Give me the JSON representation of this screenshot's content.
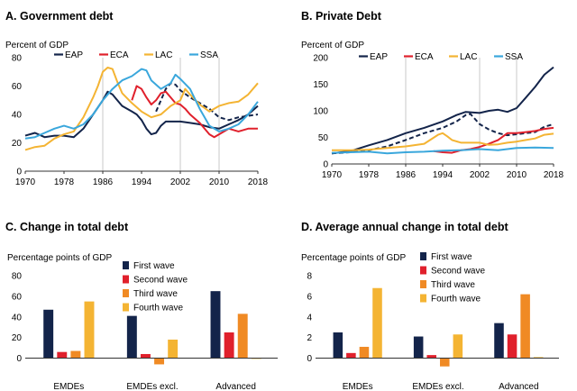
{
  "colors": {
    "navy": "#13244a",
    "red": "#e0202c",
    "orange": "#f08a24",
    "yellow": "#f4b433",
    "blue": "#3aa7dc",
    "gray": "#c8c8c8"
  },
  "chart_data": [
    {
      "id": "A",
      "type": "line",
      "title": "A. Government debt",
      "ylabel": "Percent of GDP",
      "ylim": [
        0,
        80
      ],
      "yticks": [
        0,
        20,
        40,
        60,
        80
      ],
      "xlim": [
        1970,
        2018
      ],
      "xticks": [
        1970,
        1978,
        1986,
        1994,
        2002,
        2010,
        2018
      ],
      "vlines": [
        1986,
        2002,
        2010
      ],
      "legend": [
        "EAP",
        "ECA",
        "LAC",
        "SSA"
      ],
      "series": [
        {
          "name": "EAP",
          "color": "navy",
          "dash": false,
          "points": [
            [
              1970,
              25
            ],
            [
              1972,
              27
            ],
            [
              1974,
              24
            ],
            [
              1976,
              25
            ],
            [
              1978,
              25
            ],
            [
              1980,
              24
            ],
            [
              1982,
              30
            ],
            [
              1984,
              40
            ],
            [
              1986,
              50
            ],
            [
              1987,
              56
            ],
            [
              1988,
              54
            ],
            [
              1990,
              46
            ],
            [
              1992,
              42
            ],
            [
              1993,
              40
            ],
            [
              1994,
              36
            ],
            [
              1995,
              30
            ],
            [
              1996,
              26
            ],
            [
              1997,
              27
            ],
            [
              1998,
              32
            ],
            [
              1999,
              35
            ],
            [
              2000,
              35
            ],
            [
              2002,
              35
            ],
            [
              2004,
              34
            ],
            [
              2006,
              33
            ],
            [
              2008,
              31
            ],
            [
              2010,
              30
            ],
            [
              2012,
              33
            ],
            [
              2014,
              36
            ],
            [
              2016,
              40
            ],
            [
              2018,
              46
            ]
          ]
        },
        {
          "name": "EAP dashed",
          "color": "navy",
          "dash": true,
          "points": [
            [
              1997,
              42
            ],
            [
              1998,
              50
            ],
            [
              1999,
              58
            ],
            [
              2000,
              62
            ],
            [
              2001,
              61
            ],
            [
              2002,
              57
            ],
            [
              2004,
              52
            ],
            [
              2006,
              48
            ],
            [
              2008,
              44
            ],
            [
              2010,
              38
            ],
            [
              2012,
              36
            ],
            [
              2014,
              38
            ],
            [
              2016,
              39
            ],
            [
              2018,
              40
            ]
          ]
        },
        {
          "name": "ECA",
          "color": "red",
          "dash": false,
          "points": [
            [
              1992,
              50
            ],
            [
              1993,
              60
            ],
            [
              1994,
              58
            ],
            [
              1995,
              52
            ],
            [
              1996,
              47
            ],
            [
              1997,
              50
            ],
            [
              1998,
              55
            ],
            [
              1999,
              56
            ],
            [
              2000,
              52
            ],
            [
              2001,
              48
            ],
            [
              2002,
              47
            ],
            [
              2003,
              44
            ],
            [
              2004,
              40
            ],
            [
              2006,
              34
            ],
            [
              2008,
              26
            ],
            [
              2009,
              24
            ],
            [
              2010,
              26
            ],
            [
              2012,
              30
            ],
            [
              2014,
              28
            ],
            [
              2016,
              30
            ],
            [
              2018,
              30
            ]
          ]
        },
        {
          "name": "LAC",
          "color": "yellow",
          "dash": false,
          "points": [
            [
              1970,
              15
            ],
            [
              1972,
              17
            ],
            [
              1974,
              18
            ],
            [
              1976,
              23
            ],
            [
              1978,
              26
            ],
            [
              1980,
              28
            ],
            [
              1982,
              38
            ],
            [
              1984,
              52
            ],
            [
              1985,
              60
            ],
            [
              1986,
              70
            ],
            [
              1987,
              73
            ],
            [
              1988,
              72
            ],
            [
              1989,
              63
            ],
            [
              1990,
              55
            ],
            [
              1992,
              48
            ],
            [
              1994,
              42
            ],
            [
              1996,
              38
            ],
            [
              1998,
              40
            ],
            [
              2000,
              46
            ],
            [
              2002,
              50
            ],
            [
              2003,
              58
            ],
            [
              2004,
              54
            ],
            [
              2006,
              47
            ],
            [
              2008,
              42
            ],
            [
              2010,
              46
            ],
            [
              2012,
              48
            ],
            [
              2014,
              49
            ],
            [
              2016,
              54
            ],
            [
              2018,
              62
            ]
          ]
        },
        {
          "name": "SSA",
          "color": "blue",
          "dash": false,
          "points": [
            [
              1970,
              23
            ],
            [
              1972,
              24
            ],
            [
              1974,
              27
            ],
            [
              1976,
              30
            ],
            [
              1978,
              32
            ],
            [
              1980,
              30
            ],
            [
              1982,
              33
            ],
            [
              1984,
              40
            ],
            [
              1986,
              50
            ],
            [
              1988,
              58
            ],
            [
              1990,
              64
            ],
            [
              1992,
              67
            ],
            [
              1994,
              72
            ],
            [
              1995,
              71
            ],
            [
              1996,
              64
            ],
            [
              1998,
              58
            ],
            [
              2000,
              62
            ],
            [
              2001,
              68
            ],
            [
              2002,
              65
            ],
            [
              2004,
              58
            ],
            [
              2006,
              44
            ],
            [
              2008,
              32
            ],
            [
              2010,
              28
            ],
            [
              2012,
              30
            ],
            [
              2014,
              33
            ],
            [
              2016,
              40
            ],
            [
              2018,
              49
            ]
          ]
        }
      ]
    },
    {
      "id": "B",
      "type": "line",
      "title": "B. Private Debt",
      "ylabel": "Percent of GDP",
      "ylim": [
        0,
        200
      ],
      "yticks": [
        0,
        50,
        100,
        150,
        200
      ],
      "xlim": [
        1970,
        2018
      ],
      "xticks": [
        1970,
        1978,
        1986,
        1994,
        2002,
        2010,
        2018
      ],
      "vlines": [
        1986,
        2002,
        2010
      ],
      "legend": [
        "EAP",
        "ECA",
        "LAC",
        "SSA"
      ],
      "series": [
        {
          "name": "EAP",
          "color": "navy",
          "dash": false,
          "points": [
            [
              1970,
              20
            ],
            [
              1974,
              24
            ],
            [
              1978,
              35
            ],
            [
              1982,
              45
            ],
            [
              1986,
              58
            ],
            [
              1990,
              68
            ],
            [
              1994,
              80
            ],
            [
              1997,
              92
            ],
            [
              1999,
              98
            ],
            [
              2002,
              96
            ],
            [
              2004,
              100
            ],
            [
              2006,
              102
            ],
            [
              2008,
              98
            ],
            [
              2010,
              105
            ],
            [
              2012,
              125
            ],
            [
              2014,
              145
            ],
            [
              2016,
              168
            ],
            [
              2018,
              182
            ]
          ]
        },
        {
          "name": "EAP dashed",
          "color": "navy",
          "dash": true,
          "points": [
            [
              1970,
              20
            ],
            [
              1974,
              22
            ],
            [
              1978,
              26
            ],
            [
              1982,
              33
            ],
            [
              1986,
              45
            ],
            [
              1990,
              58
            ],
            [
              1994,
              68
            ],
            [
              1997,
              80
            ],
            [
              1999,
              92
            ],
            [
              2000,
              94
            ],
            [
              2002,
              75
            ],
            [
              2004,
              65
            ],
            [
              2006,
              58
            ],
            [
              2008,
              54
            ],
            [
              2010,
              56
            ],
            [
              2012,
              58
            ],
            [
              2014,
              60
            ],
            [
              2016,
              70
            ],
            [
              2018,
              75
            ]
          ]
        },
        {
          "name": "ECA",
          "color": "red",
          "dash": false,
          "points": [
            [
              1992,
              24
            ],
            [
              1994,
              22
            ],
            [
              1996,
              21
            ],
            [
              1998,
              26
            ],
            [
              2000,
              28
            ],
            [
              2002,
              32
            ],
            [
              2004,
              38
            ],
            [
              2006,
              45
            ],
            [
              2008,
              58
            ],
            [
              2010,
              58
            ],
            [
              2012,
              60
            ],
            [
              2014,
              62
            ],
            [
              2016,
              66
            ],
            [
              2018,
              68
            ]
          ]
        },
        {
          "name": "LAC",
          "color": "yellow",
          "dash": false,
          "points": [
            [
              1970,
              26
            ],
            [
              1974,
              26
            ],
            [
              1978,
              27
            ],
            [
              1982,
              30
            ],
            [
              1986,
              33
            ],
            [
              1990,
              38
            ],
            [
              1993,
              55
            ],
            [
              1994,
              58
            ],
            [
              1995,
              52
            ],
            [
              1996,
              45
            ],
            [
              1998,
              40
            ],
            [
              2000,
              40
            ],
            [
              2002,
              40
            ],
            [
              2004,
              36
            ],
            [
              2006,
              37
            ],
            [
              2008,
              40
            ],
            [
              2010,
              42
            ],
            [
              2012,
              45
            ],
            [
              2014,
              48
            ],
            [
              2016,
              55
            ],
            [
              2018,
              57
            ]
          ]
        },
        {
          "name": "SSA",
          "color": "blue",
          "dash": false,
          "points": [
            [
              1970,
              21
            ],
            [
              1974,
              22
            ],
            [
              1978,
              23
            ],
            [
              1982,
              20
            ],
            [
              1986,
              22
            ],
            [
              1990,
              23
            ],
            [
              1994,
              25
            ],
            [
              1998,
              26
            ],
            [
              2002,
              28
            ],
            [
              2006,
              26
            ],
            [
              2010,
              30
            ],
            [
              2014,
              31
            ],
            [
              2018,
              30
            ]
          ]
        }
      ]
    },
    {
      "id": "C",
      "type": "bar",
      "title": "C. Change in total debt",
      "ylabel": "Percentage points of GDP",
      "ylim": [
        -10,
        80
      ],
      "yticks": [
        0,
        20,
        40,
        60,
        80
      ],
      "categories": [
        "EMDEs",
        "EMDEs excl.",
        "Advanced"
      ],
      "legend": [
        "First wave",
        "Second wave",
        "Third wave",
        "Fourth wave"
      ],
      "series": [
        {
          "name": "First wave",
          "color": "navy",
          "values": [
            47,
            41,
            65
          ]
        },
        {
          "name": "Second wave",
          "color": "red",
          "values": [
            6,
            4,
            25
          ]
        },
        {
          "name": "Third wave",
          "color": "orange",
          "values": [
            7,
            -6,
            43
          ]
        },
        {
          "name": "Fourth wave",
          "color": "yellow",
          "values": [
            55,
            18,
            0
          ]
        }
      ]
    },
    {
      "id": "D",
      "type": "bar",
      "title": "D. Average annual change in total debt",
      "ylabel": "Percentage points of GDP",
      "ylim": [
        -1,
        8
      ],
      "yticks": [
        0,
        2,
        4,
        6,
        8
      ],
      "categories": [
        "EMDEs",
        "EMDEs excl.",
        "Advanced"
      ],
      "legend": [
        "First wave",
        "Second wave",
        "Third wave",
        "Fourth wave"
      ],
      "series": [
        {
          "name": "First wave",
          "color": "navy",
          "values": [
            2.5,
            2.1,
            3.4
          ]
        },
        {
          "name": "Second wave",
          "color": "red",
          "values": [
            0.5,
            0.3,
            2.3
          ]
        },
        {
          "name": "Third wave",
          "color": "orange",
          "values": [
            1.1,
            -0.8,
            6.2
          ]
        },
        {
          "name": "Fourth wave",
          "color": "yellow",
          "values": [
            6.8,
            2.3,
            0.1
          ]
        }
      ]
    }
  ]
}
